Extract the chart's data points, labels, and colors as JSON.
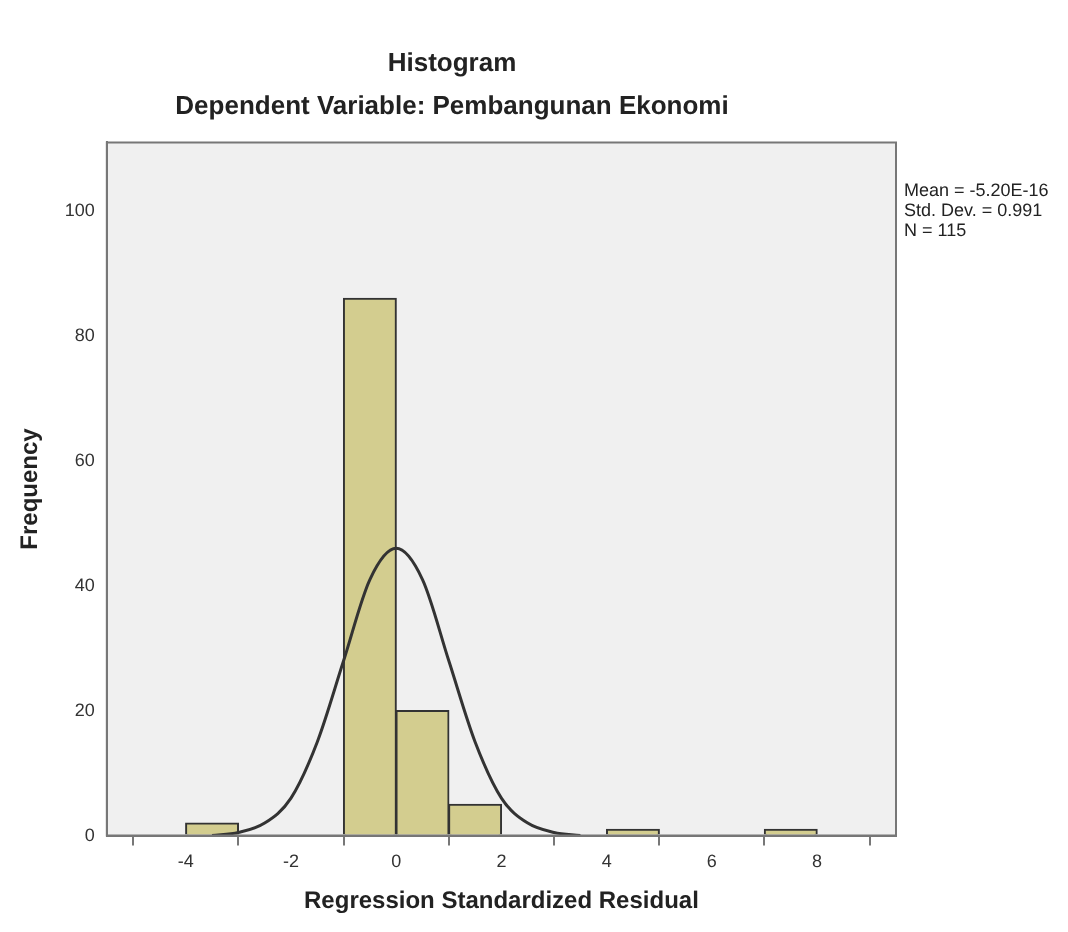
{
  "chart_data": {
    "type": "histogram",
    "title": "Histogram",
    "subtitle": "Dependent Variable: Pembangunan Ekonomi",
    "xlabel": "Regression Standardized Residual",
    "ylabel": "Frequency",
    "series": [
      {
        "color": "#d3cd8f",
        "bins": [
          -4,
          -3,
          -2,
          -1,
          0,
          1,
          2,
          3,
          4,
          5,
          6,
          7,
          8
        ],
        "values": [
          2,
          0,
          0,
          86,
          20,
          5,
          0,
          0,
          1,
          0,
          0,
          1
        ]
      },
      {
        "type": "line",
        "color": "#333333",
        "marker": "none",
        "x": [
          -3.5,
          -3,
          -2.5,
          -2,
          -1.5,
          -1,
          -0.5,
          0,
          0.5,
          1,
          1.5,
          2,
          2.5,
          3,
          3.5
        ],
        "values": [
          0,
          0.5,
          2,
          6,
          15,
          28,
          41,
          46,
          41,
          28,
          15,
          6,
          2,
          0.5,
          0
        ]
      }
    ],
    "xlim": [
      -5.5,
      9.5
    ],
    "xticks": [
      -4,
      -2,
      0,
      2,
      4,
      6,
      8
    ],
    "ylim": [
      0,
      111
    ],
    "yticks": [
      0,
      20,
      40,
      60,
      80,
      100
    ],
    "grid": false,
    "legend": false,
    "annotations": [
      "Mean = -5.20E-16",
      "Std. Dev. = 0.991",
      "N = 115"
    ]
  }
}
